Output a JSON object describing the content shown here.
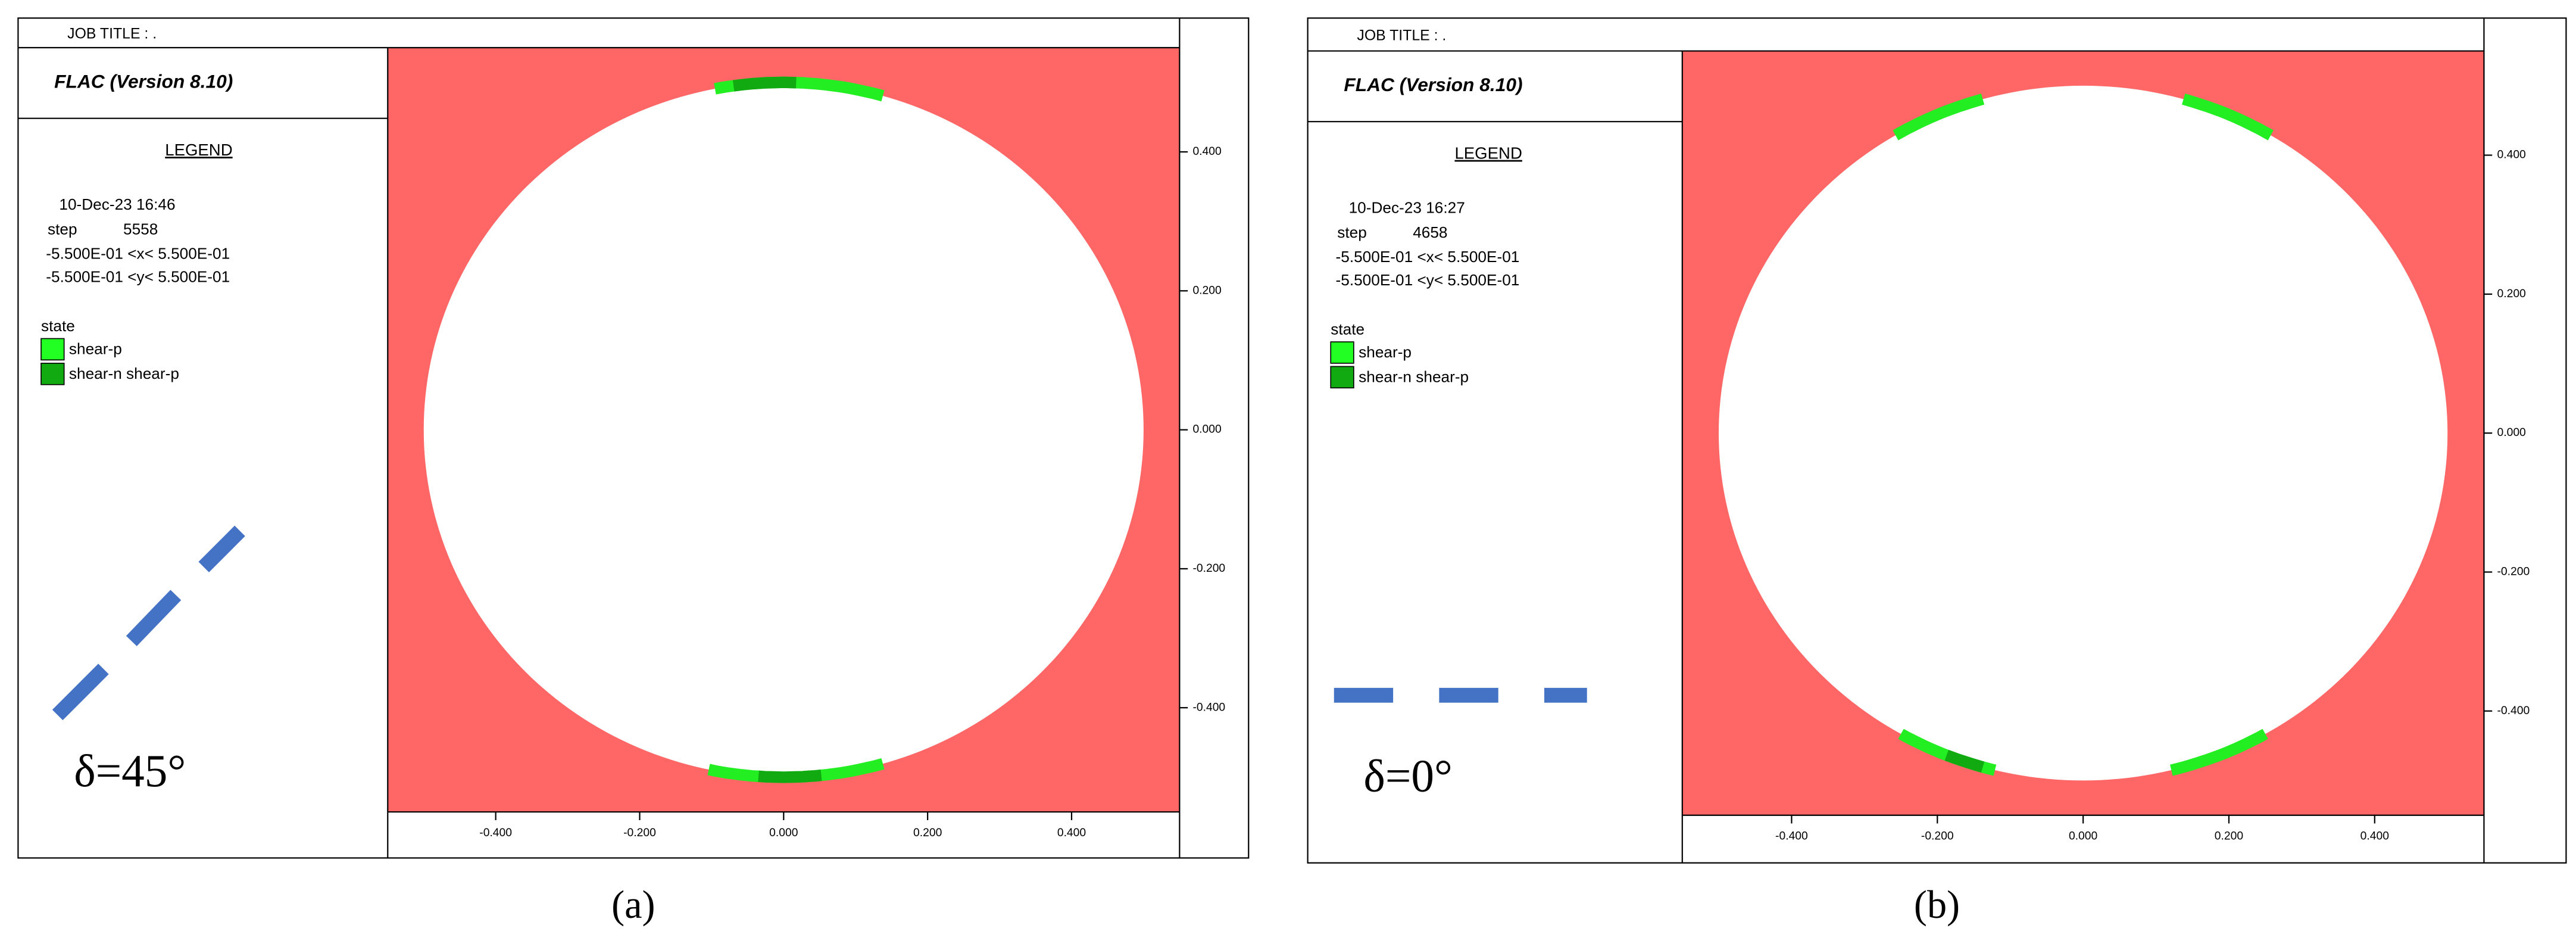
{
  "panels": [
    {
      "job_title": "JOB TITLE : .",
      "version": "FLAC (Version 8.10)",
      "legend_title": "LEGEND",
      "date": "10-Dec-23  16:46",
      "step_label": "step",
      "step": 5558,
      "x_range": "-5.500E-01 <x< 5.500E-01",
      "y_range": "-5.500E-01 <y< 5.500E-01",
      "state_label": "state",
      "legend_items": [
        "shear-p",
        "shear-n shear-p"
      ],
      "delta": "δ=45°",
      "caption": "(a)",
      "xlim": [
        -0.55,
        0.55
      ],
      "ylim": [
        -0.55,
        0.55
      ],
      "xticks": [
        {
          "value": -0.4,
          "label": "-0.400"
        },
        {
          "value": -0.2,
          "label": "-0.200"
        },
        {
          "value": 0,
          "label": "0.000"
        },
        {
          "value": 0.2,
          "label": "0.200"
        },
        {
          "value": 0.4,
          "label": "0.400"
        }
      ],
      "yticks": [
        {
          "value": 0.4,
          "label": "0.400"
        },
        {
          "value": 0.2,
          "label": "0.200"
        },
        {
          "value": 0,
          "label": "0.000"
        },
        {
          "value": -0.2,
          "label": "-0.200"
        },
        {
          "value": -0.4,
          "label": "-0.400"
        }
      ]
    },
    {
      "job_title": "JOB TITLE : .",
      "version": "FLAC (Version 8.10)",
      "legend_title": "LEGEND",
      "date": "10-Dec-23  16:27",
      "step_label": "step",
      "step": 4658,
      "x_range": "-5.500E-01 <x< 5.500E-01",
      "y_range": "-5.500E-01 <y< 5.500E-01",
      "state_label": "state",
      "legend_items": [
        "shear-p",
        "shear-n shear-p"
      ],
      "delta": "δ=0°",
      "caption": "(b)",
      "xlim": [
        -0.55,
        0.55
      ],
      "ylim": [
        -0.55,
        0.55
      ],
      "xticks": [
        {
          "value": -0.4,
          "label": "-0.400"
        },
        {
          "value": -0.2,
          "label": "-0.200"
        },
        {
          "value": 0,
          "label": "0.000"
        },
        {
          "value": 0.2,
          "label": "0.200"
        },
        {
          "value": 0.4,
          "label": "0.400"
        }
      ],
      "yticks": [
        {
          "value": 0.4,
          "label": "0.400"
        },
        {
          "value": 0.2,
          "label": "0.200"
        },
        {
          "value": 0,
          "label": "0.000"
        },
        {
          "value": -0.2,
          "label": "-0.200"
        },
        {
          "value": -0.4,
          "label": "-0.400"
        }
      ]
    }
  ]
}
